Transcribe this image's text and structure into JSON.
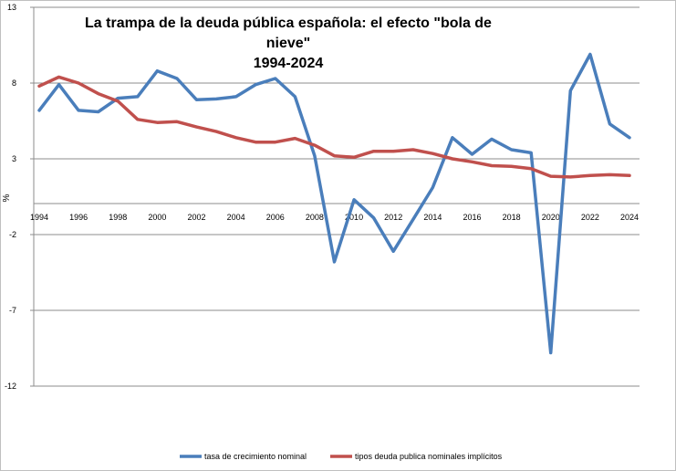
{
  "chart_data": {
    "type": "line",
    "title": "La trampa de la deuda pública española: el efecto \"bola de nieve\"",
    "subtitle": "1994-2024",
    "xlabel": "",
    "ylabel": "%",
    "ylim": [
      -12,
      13
    ],
    "yticks": [
      13,
      8,
      3,
      -2,
      -7,
      -12
    ],
    "xlim": [
      1994,
      2024
    ],
    "xticks": [
      1994,
      1996,
      1998,
      2000,
      2002,
      2004,
      2006,
      2008,
      2010,
      2012,
      2014,
      2016,
      2018,
      2020,
      2022,
      2024
    ],
    "grid": true,
    "legend": "bottom",
    "x": [
      1994,
      1995,
      1996,
      1997,
      1998,
      1999,
      2000,
      2001,
      2002,
      2003,
      2004,
      2005,
      2006,
      2007,
      2008,
      2009,
      2010,
      2011,
      2012,
      2013,
      2014,
      2015,
      2016,
      2017,
      2018,
      2019,
      2020,
      2021,
      2022,
      2023,
      2024
    ],
    "series": [
      {
        "name": "tasa de crecimiento nominal",
        "color": "#4a7ebb",
        "values": [
          6.2,
          7.9,
          6.2,
          6.1,
          7.0,
          7.1,
          8.8,
          8.3,
          6.9,
          6.95,
          7.1,
          7.9,
          8.3,
          7.1,
          3.2,
          -3.8,
          0.3,
          -0.9,
          -3.1,
          -1.0,
          1.1,
          4.4,
          3.3,
          4.3,
          3.6,
          3.4,
          -9.8,
          7.5,
          9.9,
          5.3,
          4.4
        ]
      },
      {
        "name": "tipos deuda publica nominales implícitos",
        "color": "#c0504d",
        "values": [
          7.8,
          8.4,
          8.0,
          7.3,
          6.8,
          5.6,
          5.4,
          5.45,
          5.1,
          4.8,
          4.4,
          4.1,
          4.1,
          4.35,
          3.9,
          3.2,
          3.1,
          3.5,
          3.5,
          3.6,
          3.35,
          3.0,
          2.8,
          2.55,
          2.5,
          2.35,
          1.85,
          1.8,
          1.9,
          1.95,
          1.9
        ]
      }
    ]
  }
}
